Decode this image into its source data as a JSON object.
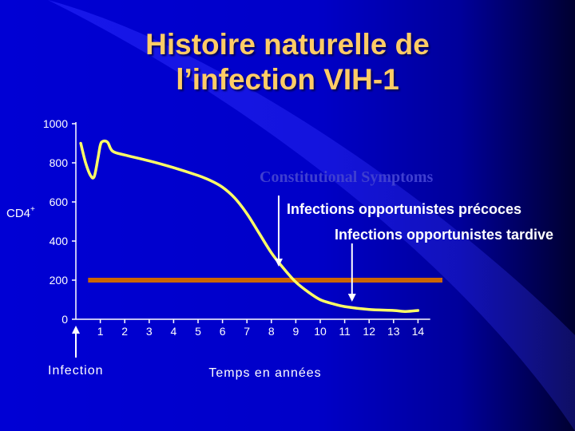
{
  "slide": {
    "title_line1": "Histoire naturelle de",
    "title_line2": "l’infection VIH-1",
    "colors": {
      "background": "#0000cc",
      "title": "#ffcc66",
      "curve": "#ffff66",
      "threshold": "#cc6600",
      "text": "#ffffff"
    }
  },
  "chart_data": {
    "type": "line",
    "title": "",
    "ylabel": "CD4",
    "ylabel_superscript": "+",
    "xlabel": "Temps en années",
    "ylim": [
      0,
      1000
    ],
    "xlim": [
      0,
      14.5
    ],
    "yticks": [
      {
        "value": 0,
        "label": "0"
      },
      {
        "value": 200,
        "label": "200"
      },
      {
        "value": 400,
        "label": "400"
      },
      {
        "value": 600,
        "label": "600"
      },
      {
        "value": 800,
        "label": "800"
      },
      {
        "value": 1000,
        "label": "1000"
      }
    ],
    "xticks": [
      {
        "value": 1,
        "label": "1"
      },
      {
        "value": 2,
        "label": "2"
      },
      {
        "value": 3,
        "label": "3"
      },
      {
        "value": 4,
        "label": "4"
      },
      {
        "value": 5,
        "label": "5"
      },
      {
        "value": 6,
        "label": "6"
      },
      {
        "value": 7,
        "label": "7"
      },
      {
        "value": 8,
        "label": "8"
      },
      {
        "value": 9,
        "label": "9"
      },
      {
        "value": 10,
        "label": "10"
      },
      {
        "value": 11,
        "label": "11"
      },
      {
        "value": 12,
        "label": "12"
      },
      {
        "value": 13,
        "label": "13"
      },
      {
        "value": 14,
        "label": "14"
      }
    ],
    "series": [
      {
        "points": [
          [
            0.2,
            900
          ],
          [
            0.4,
            800
          ],
          [
            0.6,
            735
          ],
          [
            0.75,
            730
          ],
          [
            0.9,
            820
          ],
          [
            1.0,
            890
          ],
          [
            1.1,
            910
          ],
          [
            1.3,
            905
          ],
          [
            1.5,
            860
          ],
          [
            2.0,
            840
          ],
          [
            3.0,
            810
          ],
          [
            4.0,
            775
          ],
          [
            5.0,
            735
          ],
          [
            5.5,
            710
          ],
          [
            6.0,
            675
          ],
          [
            6.5,
            620
          ],
          [
            7.0,
            540
          ],
          [
            7.5,
            440
          ],
          [
            8.0,
            340
          ],
          [
            8.5,
            260
          ],
          [
            9.0,
            190
          ],
          [
            9.5,
            140
          ],
          [
            10.0,
            100
          ],
          [
            10.5,
            80
          ],
          [
            11.0,
            65
          ],
          [
            12.0,
            50
          ],
          [
            13.0,
            45
          ],
          [
            13.5,
            40
          ],
          [
            14.0,
            45
          ]
        ]
      }
    ],
    "threshold": {
      "y": 200,
      "x_range": [
        0.5,
        15.0
      ]
    },
    "annotations": [
      {
        "text": "Infection",
        "x": 0
      },
      {
        "text": "Constitutional Symptoms",
        "x": 8.3
      },
      {
        "text": "Infections opportunistes précoces",
        "x": 8.3
      },
      {
        "text": "Infections opportunistes tardive",
        "x": 11.3
      }
    ]
  }
}
